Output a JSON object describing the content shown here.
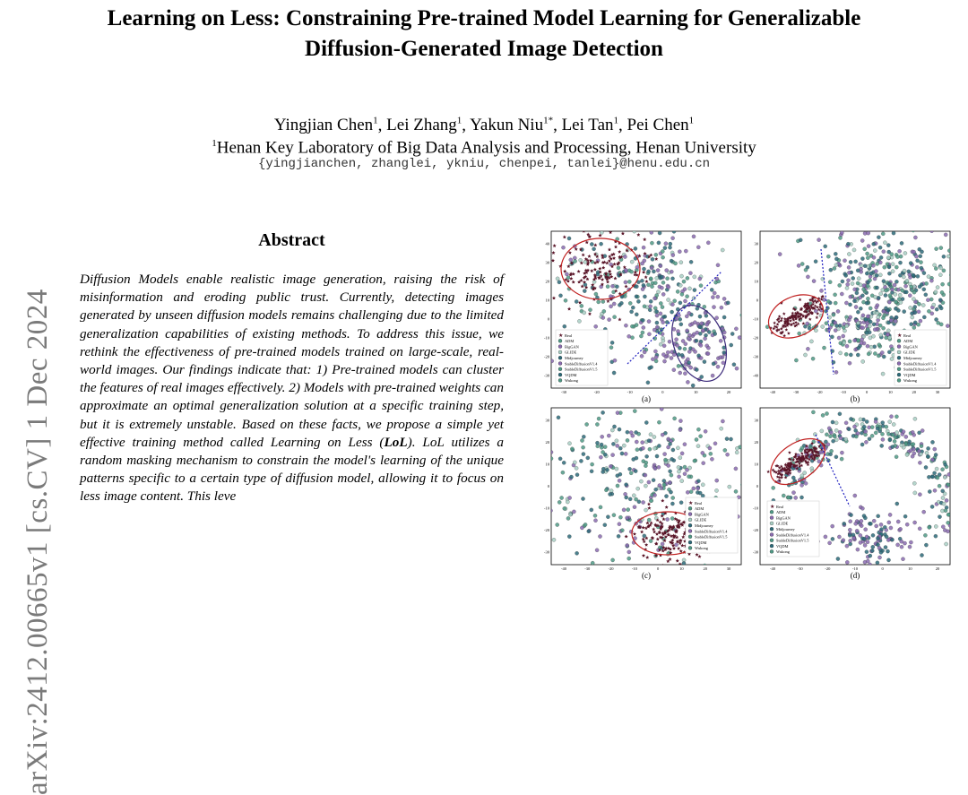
{
  "arxiv_stamp": "arXiv:2412.00665v1  [cs.CV]  1 Dec 2024",
  "title": {
    "line1": "Learning on Less: Constraining Pre-trained Model Learning for Generalizable",
    "line2": "Diffusion-Generated Image Detection"
  },
  "authors": [
    {
      "name": "Yingjian Chen",
      "sup": "1"
    },
    {
      "name": "Lei Zhang",
      "sup": "1"
    },
    {
      "name": "Yakun Niu",
      "sup": "1*"
    },
    {
      "name": "Lei Tan",
      "sup": "1"
    },
    {
      "name": "Pei Chen",
      "sup": "1"
    }
  ],
  "affiliation": {
    "sup": "1",
    "text": "Henan Key Laboratory of Big Data Analysis and Processing, Henan University"
  },
  "emails": "{yingjianchen, zhanglei, ykniu, chenpei, tanlei}@henu.edu.cn",
  "abstract": {
    "heading": "Abstract",
    "p1": "Diffusion Models enable realistic image generation, raising the risk of misinformation and eroding public trust. Currently, detecting images generated by unseen diffusion models remains challenging due to the limited generalization capabilities of existing methods. To address this issue, we rethink the effectiveness of pre-trained models trained on large-scale, real-world images. Our findings indicate that: 1) Pre-trained models can cluster the features of real images effectively. 2) Models with pre-trained weights can approximate an optimal generalization solution at a specific training step, but it is extremely unstable. Based on these facts, we propose a simple yet effective training method called Learning on Less (",
    "bold": "LoL",
    "p2": "). LoL utilizes a random masking mechanism to constrain the model's learning of the unique patterns specific to a certain type of diffusion model, allowing it to focus on less image content. This leve"
  },
  "figure": {
    "legend": [
      "Real",
      "ADM",
      "BigGAN",
      "GLIDE",
      "Midjourney",
      "StableDiffusionV1.4",
      "StableDiffusionV1.5",
      "VQDM",
      "Wukong"
    ],
    "colors": {
      "real": "#5a1528",
      "teal": "#2d6b7a",
      "green": "#4f9a86",
      "purple": "#8a6bb0",
      "light": "#a8cfc4",
      "ellipse_red": "#c02020",
      "ellipse_purple": "#3b2a7a",
      "divider": "#2020c0"
    },
    "panels": [
      {
        "caption": "(a)",
        "xticks": [
          "-30",
          "-20",
          "-10",
          "0",
          "10",
          "20"
        ],
        "yticks": [
          "40",
          "30",
          "20",
          "10",
          "0",
          "-10",
          "-20",
          "-30"
        ]
      },
      {
        "caption": "(b)",
        "xticks": [
          "-40",
          "-30",
          "-20",
          "-10",
          "0",
          "10",
          "20",
          "30"
        ],
        "yticks": [
          "30",
          "20",
          "10",
          "0",
          "-10",
          "-20",
          "-30",
          "-40"
        ]
      },
      {
        "caption": "(c)",
        "xticks": [
          "-40",
          "-30",
          "-20",
          "-10",
          "0",
          "10",
          "20",
          "30"
        ],
        "yticks": [
          "30",
          "20",
          "10",
          "0",
          "-10",
          "-20",
          "-30"
        ]
      },
      {
        "caption": "(d)",
        "xticks": [
          "-40",
          "-30",
          "-20",
          "-10",
          "0",
          "10",
          "20"
        ],
        "yticks": [
          "30",
          "20",
          "10",
          "0",
          "-10",
          "-20",
          "-30"
        ]
      }
    ]
  }
}
